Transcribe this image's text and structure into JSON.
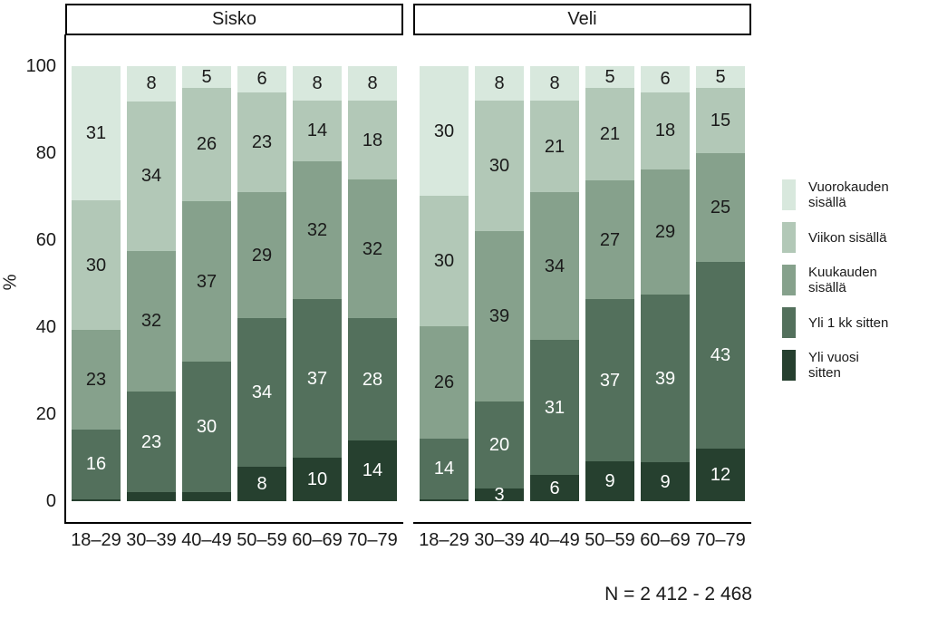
{
  "y_axis": {
    "label": "%"
  },
  "legend": {
    "items": [
      {
        "label": "Vuorokauden sisällä",
        "lines": [
          "Vuorokauden",
          "sisällä"
        ],
        "color": "#d8e8dd",
        "value_text_color": "#1a1a1a"
      },
      {
        "label": "Viikon sisällä",
        "lines": [
          "Viikon sisällä"
        ],
        "color": "#b2c8b7",
        "value_text_color": "#1a1a1a"
      },
      {
        "label": "Kuukauden sisällä",
        "lines": [
          "Kuukauden",
          "sisällä"
        ],
        "color": "#86a18c",
        "value_text_color": "#1a1a1a"
      },
      {
        "label": "Yli 1 kk sitten",
        "lines": [
          "Yli 1 kk sitten"
        ],
        "color": "#53705c",
        "value_text_color": "#ffffff"
      },
      {
        "label": "Yli vuosi sitten",
        "lines": [
          "Yli vuosi",
          "sitten"
        ],
        "color": "#26402f",
        "value_text_color": "#ffffff"
      }
    ]
  },
  "footnote": "N = 2 412 - 2 468",
  "chart_data": {
    "type": "bar",
    "subtype": "stacked-percent",
    "ylabel": "%",
    "ylim": [
      0,
      100
    ],
    "yticks": [
      0,
      20,
      40,
      60,
      80,
      100
    ],
    "grid": false,
    "legend_position": "right",
    "categories": [
      "18–29",
      "30–39",
      "40–49",
      "50–59",
      "60–69",
      "70–79"
    ],
    "facets": [
      {
        "title": "Sisko",
        "series": [
          {
            "name": "Vuorokauden sisällä",
            "values": [
              31,
              8,
              5,
              6,
              8,
              8
            ]
          },
          {
            "name": "Viikon sisällä",
            "values": [
              30,
              34,
              26,
              23,
              14,
              18
            ]
          },
          {
            "name": "Kuukauden sisällä",
            "values": [
              23,
              32,
              37,
              29,
              32,
              32
            ]
          },
          {
            "name": "Yli 1 kk sitten",
            "values": [
              16,
              23,
              30,
              34,
              37,
              28
            ]
          },
          {
            "name": "Yli vuosi sitten",
            "values": [
              0.5,
              2,
              2,
              8,
              10,
              14
            ],
            "shown_labels": [
              "",
              "",
              "",
              "8",
              "10",
              "14"
            ]
          }
        ]
      },
      {
        "title": "Veli",
        "series": [
          {
            "name": "Vuorokauden sisällä",
            "values": [
              30,
              8,
              8,
              5,
              6,
              5
            ]
          },
          {
            "name": "Viikon sisällä",
            "values": [
              30,
              30,
              21,
              21,
              18,
              15
            ]
          },
          {
            "name": "Kuukauden sisällä",
            "values": [
              26,
              39,
              34,
              27,
              29,
              25
            ]
          },
          {
            "name": "Yli 1 kk sitten",
            "values": [
              14,
              20,
              31,
              37,
              39,
              43
            ]
          },
          {
            "name": "Yli vuosi sitten",
            "values": [
              0.5,
              3,
              6,
              9,
              9,
              12
            ],
            "shown_labels": [
              "",
              "3",
              "6",
              "9",
              "9",
              "12"
            ]
          }
        ]
      }
    ]
  }
}
